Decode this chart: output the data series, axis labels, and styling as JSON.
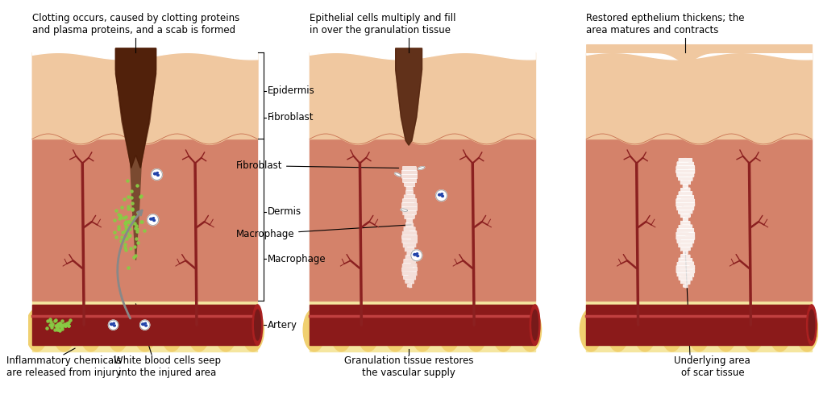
{
  "background_color": "#ffffff",
  "skin_colors": {
    "epidermis": "#f0c8a0",
    "dermis": "#d4826a",
    "fat_bg": "#f5e6a0",
    "fat_blob": "#f0d070",
    "artery": "#8b1a1a",
    "artery_highlight": "#c04040",
    "wound_dark": "#5a2a10",
    "wound_medium": "#7a4a30",
    "capillary": "#8b2020",
    "white": "#ffffff",
    "gray": "#aaaaaa"
  },
  "labels": {
    "step1_title": "Clotting occurs, caused by clotting proteins\nand plasma proteins, and a scab is formed",
    "step2_title": "Epithelial cells multiply and fill\nin over the granulation tissue",
    "step3_title": "Restored epthelium thickens; the\narea matures and contracts",
    "epidermis": "Epidermis",
    "fibroblast": "Fibroblast",
    "dermis": "Dermis",
    "macrophage": "Macrophage",
    "artery": "Artery",
    "inflammatory": "Inflammatory chemicals\nare released from injury",
    "wbc": "White blood cells seep\ninto the injured area",
    "granulation": "Granulation tissue restores\nthe vascular supply",
    "scar_tissue": "Underlying area\nof scar tissue"
  },
  "font_size": 8.5
}
